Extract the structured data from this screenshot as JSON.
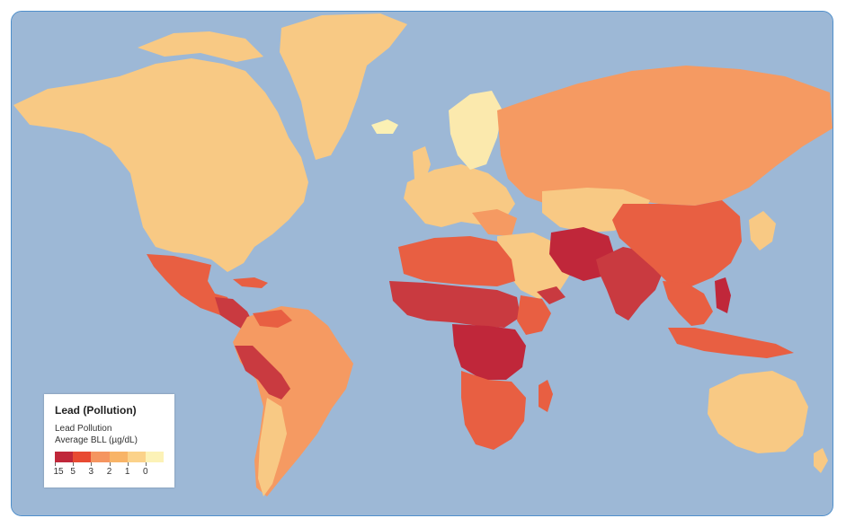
{
  "legend": {
    "title": "Lead (Pollution)",
    "subtitle_line1": "Lead Pollution",
    "subtitle_line2": "Average BLL (µg/dL)",
    "labels": [
      "15",
      "5",
      "3",
      "2",
      "1",
      "0"
    ]
  },
  "colors": {
    "ocean": "#9db8d6",
    "frame": "#4f8fcb",
    "scale": [
      "#c0273a",
      "#e84a32",
      "#f59560",
      "#f8b467",
      "#fbd28a",
      "#fcf2b7"
    ],
    "no_data": "#b7b7b7"
  }
}
